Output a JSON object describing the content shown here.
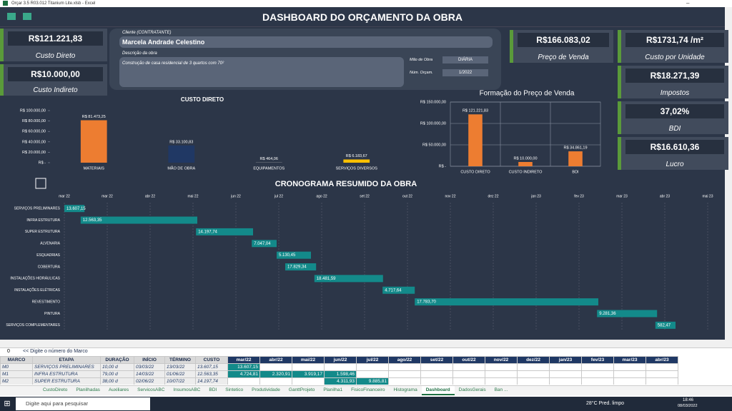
{
  "window": {
    "title": "Orçar 3.5 R03.012 Titanium Lite.xlsb - Excel"
  },
  "header": {
    "title": "DASHBOARD DO ORÇAMENTO DA OBRA"
  },
  "kpis": [
    {
      "value": "R$121.221,83",
      "label": "Custo Direto"
    },
    {
      "value": "R$10.000,00",
      "label": "Custo Indireto"
    },
    {
      "value": "R$166.083,02",
      "label": "Preço de Venda"
    },
    {
      "value": "R$1731,74 /m²",
      "label": "Custo por Unidade"
    },
    {
      "value": "R$18.271,39",
      "label": "Impostos"
    },
    {
      "value": "37,02%",
      "label": "BDI"
    },
    {
      "value": "R$16.610,36",
      "label": "Lucro"
    }
  ],
  "project": {
    "client_label": "Cliente (CONTRATANTE)",
    "client": "Marcela Andrade Celestino",
    "description_label": "Descrição da obra",
    "description": "Construção de casa residencial de 3 quartos com 70²",
    "labor_label": "Mão de Obra",
    "labor": "DIÁRIA",
    "budget_label": "Núm. Orçam.",
    "budget": "1/2022"
  },
  "custo_direto_chart": {
    "type": "bar",
    "title": "CUSTO DIRETO",
    "categories": [
      "MATERIAIS",
      "MÃO DE OBRA",
      "EQUIPAMENTOS",
      "SERVIÇOS DIVERSOS"
    ],
    "values": [
      81473.25,
      33100.83,
      464.06,
      6183.67
    ],
    "value_labels": [
      "R$ 81.473,25",
      "R$ 33.100,83",
      "R$ 464,06",
      "R$ 6.183,67"
    ],
    "colors": [
      "#ed7d31",
      "#203864",
      "#a5a5a5",
      "#ffc000"
    ],
    "ylim": [
      0,
      100000
    ],
    "yticks": [
      {
        "value": 0,
        "label": "R$ -"
      },
      {
        "value": 20000,
        "label": "R$ 20.000,00"
      },
      {
        "value": 40000,
        "label": "R$ 40.000,00"
      },
      {
        "value": 60000,
        "label": "R$ 60.000,00"
      },
      {
        "value": 80000,
        "label": "R$ 80.000,00"
      },
      {
        "value": 100000,
        "label": "R$ 100.000,00"
      }
    ]
  },
  "preco_chart": {
    "type": "bar",
    "title": "Formação do Preço de Venda",
    "categories": [
      "CUSTO DIRETO",
      "CUSTO INDIRETO",
      "BDI"
    ],
    "values": [
      121221.83,
      10000,
      34861.19
    ],
    "value_labels": [
      "R$ 121.221,83",
      "R$ 10.000,00",
      "R$ 34.861,19"
    ],
    "colors": [
      "#ed7d31",
      "#ed7d31",
      "#ed7d31"
    ],
    "ylim": [
      0,
      150000
    ],
    "yticks": [
      {
        "value": 0,
        "label": "R$ -"
      },
      {
        "value": 50000,
        "label": "R$ 50.000,00"
      },
      {
        "value": 100000,
        "label": "R$ 100.000,00"
      },
      {
        "value": 150000,
        "label": "R$ 150.000,00"
      }
    ],
    "grid": true
  },
  "gantt": {
    "type": "gantt",
    "title": "CRONOGRAMA RESUMIDO DA OBRA",
    "color": "#138a8a",
    "xlim": [
      0,
      15
    ],
    "xticks": [
      {
        "value": 0,
        "label": "mar 22"
      },
      {
        "value": 1,
        "label": "mar 22"
      },
      {
        "value": 2,
        "label": "abr 22"
      },
      {
        "value": 3,
        "label": "mai 22"
      },
      {
        "value": 4,
        "label": "jun 22"
      },
      {
        "value": 5,
        "label": "jul 22"
      },
      {
        "value": 6,
        "label": "ago 22"
      },
      {
        "value": 7,
        "label": "set 22"
      },
      {
        "value": 8,
        "label": "out 22"
      },
      {
        "value": 9,
        "label": "nov 22"
      },
      {
        "value": 10,
        "label": "dez 22"
      },
      {
        "value": 11,
        "label": "jan 23"
      },
      {
        "value": 12,
        "label": "fev 23"
      },
      {
        "value": 13,
        "label": "mar 23"
      },
      {
        "value": 14,
        "label": "abr 23"
      },
      {
        "value": 15,
        "label": "mai 23"
      }
    ],
    "tasks": [
      {
        "name": "SERVIÇOS PRELIMINARES",
        "start": 0,
        "end": 0.47,
        "label": "13.607,15"
      },
      {
        "name": "INFRA ESTRUTURA",
        "start": 0.38,
        "end": 3.1,
        "label": "12.563,35"
      },
      {
        "name": "SUPER ESTRUTURA",
        "start": 3.07,
        "end": 4.4,
        "label": "14.197,74"
      },
      {
        "name": "ALVENARIA",
        "start": 4.37,
        "end": 4.95,
        "label": "7.047,04"
      },
      {
        "name": "ESQUADRIAS",
        "start": 4.95,
        "end": 5.75,
        "label": "5.130,45"
      },
      {
        "name": "COBERTURA",
        "start": 5.15,
        "end": 5.87,
        "label": "17.829,34"
      },
      {
        "name": "INSTALAÇÕES HIDRÁULICAS",
        "start": 5.83,
        "end": 7.43,
        "label": "18.481,59"
      },
      {
        "name": "INSTALAÇÕES ELÉTRICAS",
        "start": 7.42,
        "end": 8.17,
        "label": "4.717,64"
      },
      {
        "name": "REVESTIMENTO",
        "start": 8.17,
        "end": 12.45,
        "label": "17.783,70"
      },
      {
        "name": "PINTURA",
        "start": 12.42,
        "end": 13.82,
        "label": "9.281,36"
      },
      {
        "name": "SERVIÇOS COMPLEMENTARES",
        "start": 13.78,
        "end": 14.25,
        "label": "582,47"
      }
    ]
  },
  "sheet": {
    "input": "0",
    "hint": "<< Digite o número do Marco",
    "headers": [
      "MARCO",
      "ETAPA",
      "DURAÇÃO",
      "INÍCIO",
      "TÉRMINO",
      "CUSTO"
    ],
    "months": [
      "mar/22",
      "abr/22",
      "mai/22",
      "jun/22",
      "jul/22",
      "ago/22",
      "set/22",
      "out/22",
      "nov/22",
      "dez/22",
      "jan/23",
      "fev/23",
      "mar/23",
      "abr/23"
    ],
    "rows": [
      {
        "cells": [
          "M0",
          "SERVIÇOS PRELIMINARES",
          "10,00 d",
          "03/03/22",
          "13/03/22",
          "13.607,15"
        ],
        "months": [
          "13.607,15",
          null,
          null,
          null,
          null,
          null,
          null,
          null,
          null,
          null,
          null,
          null,
          null,
          null
        ]
      },
      {
        "cells": [
          "M1",
          "INFRA ESTRUTURA",
          "79,00 d",
          "14/03/22",
          "01/06/22",
          "12.563,35"
        ],
        "months": [
          "4.724,81",
          "2.320,91",
          "3.919,17",
          "1.598,46",
          null,
          null,
          null,
          null,
          null,
          null,
          null,
          null,
          null,
          null
        ]
      },
      {
        "cells": [
          "M2",
          "SUPER ESTRUTURA",
          "38,00 d",
          "02/06/22",
          "10/07/22",
          "14.197,74"
        ],
        "months": [
          null,
          null,
          null,
          "4.311,93",
          "9.885,81",
          null,
          null,
          null,
          null,
          null,
          null,
          null,
          null,
          null
        ]
      }
    ]
  },
  "tabs": [
    "CustoDireto",
    "Planilhadas",
    "Auxiliares",
    "ServicosABC",
    "InsumosABC",
    "BDI",
    "Sintetico",
    "Produtividade",
    "GanttProjeto",
    "Planilha1",
    "FisicoFinanceiro",
    "Histograma",
    "Dashboard",
    "DadosGerais",
    "Ban ..."
  ],
  "active_tab": "Dashboard",
  "taskbar": {
    "search": "Digite aqui para pesquisar",
    "weather": "28°C Pred. limpo",
    "time": "18:46",
    "date": "08/03/2022"
  }
}
